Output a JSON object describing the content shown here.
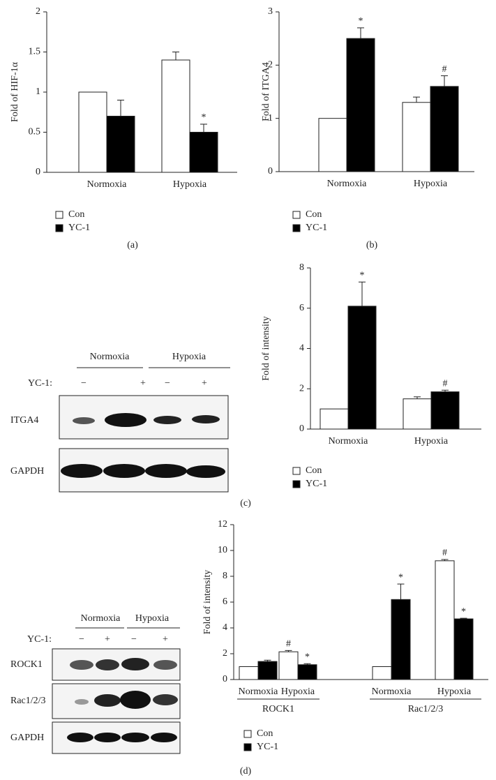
{
  "chart_data": [
    {
      "type": "bar",
      "panel_label": "(a)",
      "ylabel": "Fold of HIF-1α",
      "categories": [
        "Normoxia",
        "Hypoxia"
      ],
      "series": [
        {
          "name": "Con",
          "color": "#ffffff",
          "values": [
            1.0,
            1.4
          ],
          "errors": [
            null,
            0.1
          ],
          "annotations": [
            null,
            null
          ]
        },
        {
          "name": "YC-1",
          "color": "#000000",
          "values": [
            0.7,
            0.5
          ],
          "errors": [
            0.2,
            0.1
          ],
          "annotations": [
            null,
            "*"
          ]
        }
      ],
      "ylim": [
        0,
        2
      ],
      "yticks": [
        0,
        0.5,
        1,
        1.5,
        2
      ]
    },
    {
      "type": "bar",
      "panel_label": "(b)",
      "ylabel": "Fold of ITGA4",
      "categories": [
        "Normoxia",
        "Hypoxia"
      ],
      "series": [
        {
          "name": "Con",
          "color": "#ffffff",
          "values": [
            1.0,
            1.3
          ],
          "errors": [
            null,
            0.1
          ],
          "annotations": [
            null,
            null
          ]
        },
        {
          "name": "YC-1",
          "color": "#000000",
          "values": [
            2.5,
            1.6
          ],
          "errors": [
            0.2,
            0.2
          ],
          "annotations": [
            "*",
            "#"
          ]
        }
      ],
      "ylim": [
        0,
        3
      ],
      "yticks": [
        0,
        1,
        2,
        3
      ]
    },
    {
      "type": "bar",
      "panel_label": "(c)",
      "ylabel": "Fold of intensity",
      "categories": [
        "Normoxia",
        "Hypoxia"
      ],
      "series": [
        {
          "name": "Con",
          "color": "#ffffff",
          "values": [
            1.0,
            1.5
          ],
          "errors": [
            null,
            0.1
          ],
          "annotations": [
            null,
            null
          ]
        },
        {
          "name": "YC-1",
          "color": "#000000",
          "values": [
            6.1,
            1.85
          ],
          "errors": [
            1.2,
            0.08
          ],
          "annotations": [
            "*",
            "#"
          ]
        }
      ],
      "ylim": [
        0,
        8
      ],
      "yticks": [
        0,
        2,
        4,
        6,
        8
      ]
    },
    {
      "type": "bar",
      "panel_label": "(d)",
      "ylabel": "Fold of intensity",
      "categories": [
        "Normoxia",
        "Hypoxia",
        "Normoxia",
        "Hypoxia"
      ],
      "group_labels": [
        "ROCK1",
        "Rac1/2/3"
      ],
      "series": [
        {
          "name": "Con",
          "color": "#ffffff",
          "values": [
            1.0,
            2.15,
            1.0,
            9.2
          ],
          "errors": [
            null,
            0.1,
            null,
            0.1
          ],
          "annotations": [
            null,
            "#",
            null,
            "#"
          ]
        },
        {
          "name": "YC-1",
          "color": "#000000",
          "values": [
            1.4,
            1.15,
            6.2,
            4.7
          ],
          "errors": [
            0.1,
            0.08,
            1.2,
            0.05
          ],
          "annotations": [
            null,
            "*",
            "*",
            "*"
          ]
        }
      ],
      "ylim": [
        0,
        12
      ],
      "yticks": [
        0,
        2,
        4,
        6,
        8,
        10,
        12
      ]
    }
  ],
  "blots": [
    {
      "groups": [
        "Normoxia",
        "Hypoxia"
      ],
      "treatment_label": "YC-1:",
      "signs": [
        "−",
        "+",
        "−",
        "+"
      ],
      "rows": [
        "ITGA4",
        "GAPDH"
      ]
    },
    {
      "groups": [
        "Normoxia",
        "Hypoxia"
      ],
      "treatment_label": "YC-1:",
      "signs": [
        "−",
        "+",
        "−",
        "+"
      ],
      "rows": [
        "ROCK1",
        "Rac1/2/3",
        "GAPDH"
      ]
    }
  ]
}
